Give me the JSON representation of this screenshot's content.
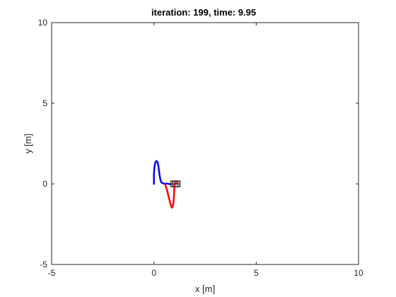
{
  "chart_data": {
    "type": "line",
    "title": "iteration: 199, time: 9.95",
    "xlabel": "x [m]",
    "ylabel": "y [m]",
    "xlim": [
      -5,
      10
    ],
    "ylim": [
      -5,
      10
    ],
    "xticks": [
      "-5",
      "0",
      "5",
      "10"
    ],
    "yticks": [
      "-5",
      "0",
      "5",
      "10"
    ],
    "grid": false,
    "series": [
      {
        "color": "#0000ff",
        "x": [
          0.0,
          0.0,
          0.02,
          0.06,
          0.12,
          0.18,
          0.22,
          0.25,
          0.28,
          0.32,
          0.36,
          0.42,
          0.48,
          0.55,
          0.62,
          0.7,
          0.8,
          0.9
        ],
        "y": [
          0.0,
          0.6,
          1.0,
          1.3,
          1.42,
          1.35,
          1.1,
          0.8,
          0.5,
          0.25,
          0.1,
          0.05,
          0.02,
          0.0,
          0.02,
          0.0,
          -0.02,
          0.0
        ]
      },
      {
        "color": "#ff0000",
        "x": [
          0.55,
          0.62,
          0.7,
          0.78,
          0.84,
          0.88,
          0.92,
          0.96,
          0.98,
          1.0,
          1.02,
          1.05,
          1.08,
          1.1
        ],
        "y": [
          -0.05,
          -0.3,
          -0.7,
          -1.1,
          -1.38,
          -1.48,
          -1.4,
          -1.1,
          -0.7,
          -0.3,
          0.0,
          0.15,
          0.1,
          0.0
        ]
      }
    ],
    "markers": [
      {
        "name": "robot",
        "color": "#404040",
        "x": 1.0,
        "y": 0.0
      },
      {
        "name": "goal",
        "color": "#404040",
        "x": 1.1,
        "y": 0.0
      }
    ]
  }
}
